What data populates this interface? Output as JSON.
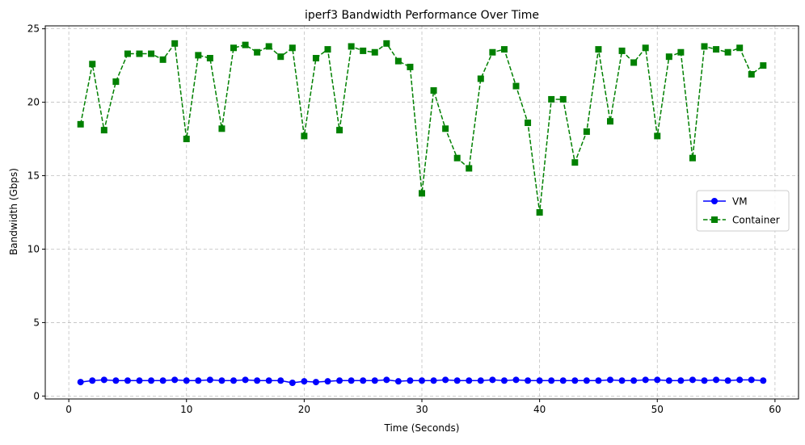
{
  "chart_data": {
    "type": "line",
    "title": "iperf3 Bandwidth Performance Over Time",
    "xlabel": "Time (Seconds)",
    "ylabel": "Bandwidth (Gbps)",
    "xlim": [
      -2,
      62
    ],
    "ylim": [
      -0.2,
      25.2
    ],
    "xticks": [
      0,
      10,
      20,
      30,
      40,
      50,
      60
    ],
    "yticks": [
      0,
      5,
      10,
      15,
      20,
      25
    ],
    "grid": true,
    "legend_position": "center-right",
    "x": [
      1,
      2,
      3,
      4,
      5,
      6,
      7,
      8,
      9,
      10,
      11,
      12,
      13,
      14,
      15,
      16,
      17,
      18,
      19,
      20,
      21,
      22,
      23,
      24,
      25,
      26,
      27,
      28,
      29,
      30,
      31,
      32,
      33,
      34,
      35,
      36,
      37,
      38,
      39,
      40,
      41,
      42,
      43,
      44,
      45,
      46,
      47,
      48,
      49,
      50,
      51,
      52,
      53,
      54,
      55,
      56,
      57,
      58,
      59
    ],
    "series": [
      {
        "name": "VM",
        "color": "#0000ff",
        "linestyle": "solid",
        "marker": "circle",
        "values": [
          0.95,
          1.05,
          1.1,
          1.05,
          1.05,
          1.05,
          1.05,
          1.05,
          1.1,
          1.05,
          1.05,
          1.1,
          1.05,
          1.05,
          1.1,
          1.05,
          1.05,
          1.05,
          0.9,
          1.0,
          0.95,
          1.0,
          1.05,
          1.05,
          1.05,
          1.05,
          1.1,
          1.0,
          1.05,
          1.05,
          1.05,
          1.1,
          1.05,
          1.05,
          1.05,
          1.1,
          1.05,
          1.1,
          1.05,
          1.05,
          1.05,
          1.05,
          1.05,
          1.05,
          1.05,
          1.1,
          1.05,
          1.05,
          1.1,
          1.1,
          1.05,
          1.05,
          1.1,
          1.05,
          1.1,
          1.05,
          1.1,
          1.1,
          1.05
        ]
      },
      {
        "name": "Container",
        "color": "#008000",
        "linestyle": "dashed",
        "marker": "square",
        "values": [
          18.5,
          22.6,
          18.1,
          21.4,
          23.3,
          23.3,
          23.3,
          22.9,
          24.0,
          17.5,
          23.2,
          23.0,
          18.2,
          23.7,
          23.9,
          23.4,
          23.8,
          23.1,
          23.7,
          17.7,
          23.0,
          23.6,
          18.1,
          23.8,
          23.5,
          23.4,
          24.0,
          22.8,
          22.4,
          13.8,
          20.8,
          18.2,
          16.2,
          15.5,
          21.6,
          23.4,
          23.6,
          21.1,
          18.6,
          12.5,
          20.2,
          20.2,
          15.9,
          18.0,
          23.6,
          18.7,
          23.5,
          22.7,
          23.7,
          17.7,
          23.1,
          23.4,
          16.2,
          23.8,
          23.6,
          23.4,
          23.7,
          21.9,
          22.5
        ]
      }
    ]
  }
}
